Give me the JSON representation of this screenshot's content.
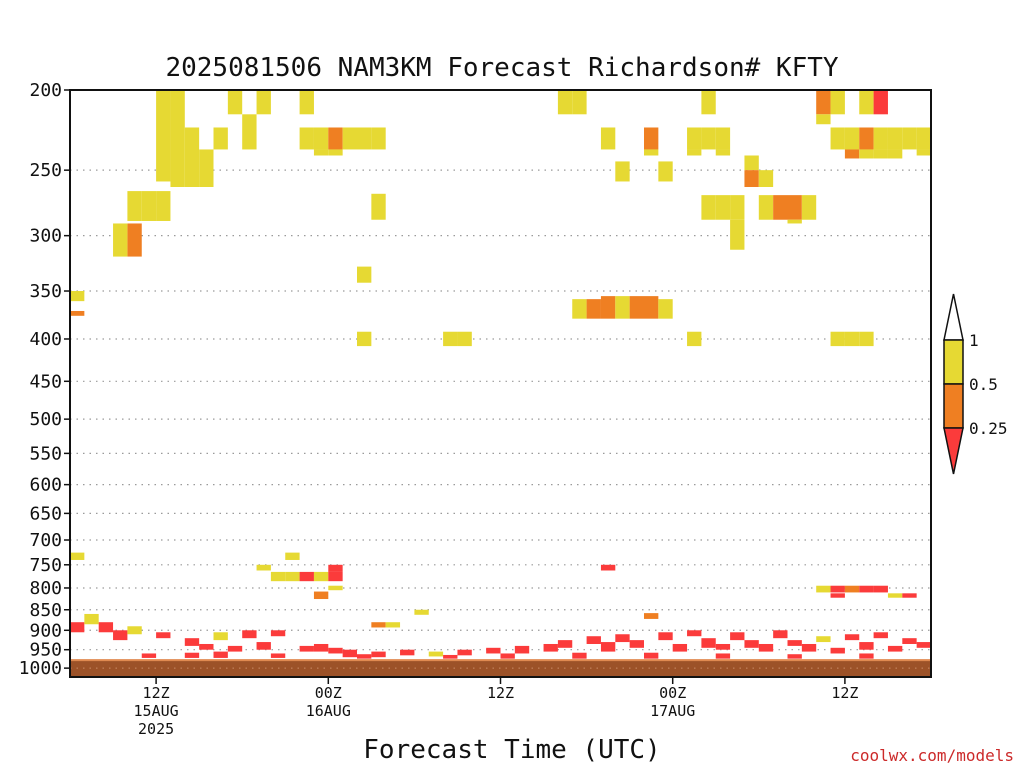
{
  "chart_data": {
    "type": "heatmap",
    "title": "2025081506 NAM3KM Forecast Richardson# KFTY",
    "xlabel": "Forecast Time (UTC)",
    "ylabel": "",
    "credit": "coolwx.com/models",
    "y_scale": "log",
    "y_reversed": true,
    "ylim": [
      1025,
      200
    ],
    "y_ticks": [
      200,
      250,
      300,
      350,
      400,
      450,
      500,
      550,
      600,
      650,
      700,
      750,
      800,
      850,
      900,
      950,
      1000
    ],
    "y_tick_labels": [
      "200",
      "250",
      "300",
      "350",
      "400",
      "450",
      "500",
      "550",
      "600",
      "650",
      "700",
      "750",
      "800",
      "850",
      "900",
      "950",
      "1000"
    ],
    "grid": true,
    "x_unit": "forecast hour",
    "xlim": [
      0,
      60
    ],
    "x_ticks": [
      {
        "x": 6,
        "line1": "12Z",
        "line2": "15AUG",
        "line3": "2025"
      },
      {
        "x": 18,
        "line1": "00Z",
        "line2": "16AUG",
        "line3": ""
      },
      {
        "x": 30,
        "line1": "12Z",
        "line2": "",
        "line3": ""
      },
      {
        "x": 42,
        "line1": "00Z",
        "line2": "17AUG",
        "line3": ""
      },
      {
        "x": 54,
        "line1": "12Z",
        "line2": "",
        "line3": ""
      }
    ],
    "colorbar": {
      "position": "right",
      "levels": [
        {
          "label": "1",
          "color": "#ffffff"
        },
        {
          "label": "0.5",
          "color": "#e6d933"
        },
        {
          "label": "0.25",
          "color": "#ef7f22"
        },
        {
          "label": "",
          "color": "#fb3b3b"
        }
      ],
      "boundary_labels": [
        "1",
        "0.5",
        "0.25"
      ]
    },
    "ground": {
      "color": "#9c5228",
      "line_color": "#e08a50",
      "pressure_top": 978
    },
    "categories": [
      {
        "name": "0.5-1",
        "color": "#e6d933"
      },
      {
        "name": "0.25-0.5",
        "color": "#ef7f22"
      },
      {
        "name": "<0.25",
        "color": "#fb3b3b"
      }
    ],
    "cells": [
      [
        6,
        7,
        200,
        258,
        1
      ],
      [
        7,
        8,
        200,
        262,
        1
      ],
      [
        8,
        9,
        222,
        262,
        1
      ],
      [
        9,
        10,
        236,
        262,
        1
      ],
      [
        5,
        6,
        265,
        288,
        1
      ],
      [
        6,
        7,
        265,
        288,
        1
      ],
      [
        4,
        5,
        265,
        288,
        1
      ],
      [
        4,
        5,
        290,
        318,
        2
      ],
      [
        3,
        4,
        290,
        318,
        1
      ],
      [
        10,
        11,
        222,
        236,
        1
      ],
      [
        11,
        12,
        200,
        214,
        1
      ],
      [
        12,
        13,
        214,
        236,
        1
      ],
      [
        13,
        14,
        200,
        214,
        1
      ],
      [
        16,
        17,
        200,
        214,
        1
      ],
      [
        16,
        17,
        222,
        236,
        1
      ],
      [
        17,
        18,
        222,
        236,
        1
      ],
      [
        18,
        19,
        222,
        236,
        2
      ],
      [
        18,
        19,
        236,
        240,
        1
      ],
      [
        17,
        18,
        236,
        240,
        1
      ],
      [
        19,
        20,
        222,
        236,
        1
      ],
      [
        20,
        21,
        222,
        236,
        1
      ],
      [
        21,
        22,
        222,
        236,
        1
      ],
      [
        21,
        22,
        267,
        287,
        1
      ],
      [
        20,
        21,
        327,
        342,
        1
      ],
      [
        20,
        21,
        392,
        408,
        1
      ],
      [
        26,
        27,
        392,
        408,
        1
      ],
      [
        27,
        28,
        392,
        408,
        1
      ],
      [
        0,
        1,
        350,
        360,
        1
      ],
      [
        0,
        1,
        370,
        375,
        2
      ],
      [
        34,
        35,
        200,
        214,
        1
      ],
      [
        35,
        36,
        200,
        214,
        1
      ],
      [
        37,
        38,
        222,
        236,
        1
      ],
      [
        38,
        39,
        244,
        258,
        1
      ],
      [
        40,
        41,
        222,
        236,
        2
      ],
      [
        40,
        41,
        236,
        240,
        1
      ],
      [
        41,
        42,
        244,
        258,
        1
      ],
      [
        43,
        44,
        222,
        236,
        1
      ],
      [
        43,
        44,
        236,
        240,
        1
      ],
      [
        44,
        45,
        222,
        236,
        1
      ],
      [
        45,
        46,
        222,
        236,
        1
      ],
      [
        45,
        46,
        236,
        240,
        1
      ],
      [
        44,
        45,
        200,
        214,
        1
      ],
      [
        44,
        45,
        268,
        287,
        1
      ],
      [
        45,
        46,
        268,
        287,
        1
      ],
      [
        46,
        47,
        268,
        287,
        1
      ],
      [
        46,
        47,
        287,
        312,
        1
      ],
      [
        47,
        48,
        240,
        250,
        1
      ],
      [
        47,
        48,
        250,
        262,
        2
      ],
      [
        48,
        49,
        250,
        262,
        1
      ],
      [
        48,
        49,
        268,
        287,
        1
      ],
      [
        49,
        50,
        268,
        287,
        2
      ],
      [
        50,
        51,
        268,
        287,
        2
      ],
      [
        50,
        51,
        287,
        290,
        1
      ],
      [
        51,
        52,
        268,
        287,
        1
      ],
      [
        52,
        53,
        200,
        214,
        2
      ],
      [
        52,
        53,
        214,
        220,
        1
      ],
      [
        53,
        54,
        200,
        214,
        1
      ],
      [
        53,
        54,
        222,
        236,
        1
      ],
      [
        54,
        55,
        222,
        236,
        1
      ],
      [
        54,
        55,
        236,
        242,
        2
      ],
      [
        55,
        56,
        200,
        214,
        1
      ],
      [
        55,
        56,
        222,
        236,
        2
      ],
      [
        55,
        56,
        236,
        242,
        1
      ],
      [
        56,
        57,
        200,
        214,
        3
      ],
      [
        56,
        57,
        222,
        236,
        1
      ],
      [
        57,
        58,
        222,
        236,
        1
      ],
      [
        57,
        58,
        236,
        242,
        1
      ],
      [
        56,
        57,
        236,
        242,
        1
      ],
      [
        58,
        59,
        222,
        236,
        1
      ],
      [
        59,
        60,
        222,
        236,
        1
      ],
      [
        59,
        60,
        236,
        240,
        1
      ],
      [
        35,
        36,
        358,
        378,
        1
      ],
      [
        36,
        37,
        358,
        378,
        2
      ],
      [
        37,
        38,
        355,
        378,
        2
      ],
      [
        38,
        39,
        355,
        378,
        1
      ],
      [
        39,
        40,
        355,
        378,
        2
      ],
      [
        40,
        41,
        355,
        378,
        2
      ],
      [
        41,
        42,
        358,
        378,
        1
      ],
      [
        43,
        44,
        392,
        408,
        1
      ],
      [
        53,
        54,
        392,
        408,
        1
      ],
      [
        54,
        55,
        392,
        408,
        1
      ],
      [
        55,
        56,
        392,
        408,
        1
      ],
      [
        0,
        1,
        725,
        740,
        1
      ],
      [
        13,
        14,
        750,
        762,
        1
      ],
      [
        14,
        15,
        765,
        785,
        1
      ],
      [
        15,
        16,
        765,
        785,
        1
      ],
      [
        16,
        17,
        765,
        785,
        3
      ],
      [
        17,
        18,
        765,
        785,
        1
      ],
      [
        18,
        19,
        750,
        765,
        3
      ],
      [
        18,
        19,
        765,
        785,
        3
      ],
      [
        15,
        16,
        725,
        740,
        1
      ],
      [
        17,
        18,
        808,
        825,
        2
      ],
      [
        18,
        19,
        795,
        805,
        1
      ],
      [
        37,
        38,
        750,
        762,
        3
      ],
      [
        52,
        53,
        795,
        810,
        1
      ],
      [
        53,
        54,
        795,
        810,
        3
      ],
      [
        54,
        55,
        795,
        810,
        2
      ],
      [
        55,
        56,
        795,
        810,
        3
      ],
      [
        56,
        57,
        795,
        810,
        3
      ],
      [
        53,
        54,
        812,
        822,
        3
      ],
      [
        57,
        58,
        812,
        822,
        1
      ],
      [
        58,
        59,
        812,
        822,
        3
      ],
      [
        40,
        41,
        858,
        872,
        2
      ],
      [
        21,
        22,
        880,
        893,
        2
      ],
      [
        22,
        23,
        880,
        893,
        1
      ],
      [
        24,
        25,
        850,
        862,
        1
      ],
      [
        0,
        1,
        880,
        905,
        3
      ],
      [
        1,
        2,
        860,
        885,
        1
      ],
      [
        2,
        3,
        880,
        905,
        3
      ],
      [
        3,
        4,
        900,
        925,
        3
      ],
      [
        4,
        5,
        890,
        910,
        1
      ],
      [
        6,
        7,
        905,
        920,
        3
      ],
      [
        8,
        9,
        920,
        940,
        3
      ],
      [
        9,
        10,
        935,
        950,
        3
      ],
      [
        10,
        11,
        905,
        925,
        1
      ],
      [
        11,
        12,
        940,
        955,
        3
      ],
      [
        12,
        13,
        900,
        920,
        3
      ],
      [
        13,
        14,
        930,
        950,
        3
      ],
      [
        14,
        15,
        900,
        915,
        3
      ],
      [
        16,
        17,
        940,
        955,
        3
      ],
      [
        17,
        18,
        935,
        955,
        3
      ],
      [
        18,
        19,
        945,
        960,
        3
      ],
      [
        19,
        20,
        950,
        970,
        3
      ],
      [
        21,
        22,
        955,
        970,
        3
      ],
      [
        23,
        24,
        950,
        965,
        3
      ],
      [
        25,
        26,
        955,
        968,
        1
      ],
      [
        27,
        28,
        950,
        965,
        3
      ],
      [
        29,
        30,
        945,
        960,
        3
      ],
      [
        31,
        32,
        940,
        960,
        3
      ],
      [
        33,
        34,
        935,
        955,
        3
      ],
      [
        34,
        35,
        925,
        945,
        3
      ],
      [
        36,
        37,
        915,
        935,
        3
      ],
      [
        37,
        38,
        930,
        955,
        3
      ],
      [
        38,
        39,
        910,
        930,
        3
      ],
      [
        39,
        40,
        925,
        945,
        3
      ],
      [
        41,
        42,
        905,
        925,
        3
      ],
      [
        42,
        43,
        935,
        955,
        3
      ],
      [
        43,
        44,
        900,
        915,
        3
      ],
      [
        44,
        45,
        920,
        945,
        3
      ],
      [
        45,
        46,
        935,
        950,
        3
      ],
      [
        46,
        47,
        905,
        925,
        3
      ],
      [
        47,
        48,
        925,
        945,
        3
      ],
      [
        48,
        49,
        935,
        955,
        3
      ],
      [
        49,
        50,
        900,
        920,
        3
      ],
      [
        50,
        51,
        925,
        940,
        3
      ],
      [
        51,
        52,
        935,
        955,
        3
      ],
      [
        52,
        53,
        915,
        930,
        1
      ],
      [
        53,
        54,
        945,
        960,
        3
      ],
      [
        54,
        55,
        910,
        925,
        3
      ],
      [
        55,
        56,
        930,
        950,
        3
      ],
      [
        56,
        57,
        905,
        920,
        3
      ],
      [
        57,
        58,
        940,
        955,
        3
      ],
      [
        58,
        59,
        920,
        935,
        3
      ],
      [
        59,
        60,
        930,
        945,
        3
      ],
      [
        5,
        6,
        960,
        972,
        3
      ],
      [
        8,
        9,
        958,
        972,
        3
      ],
      [
        10,
        11,
        955,
        972,
        3
      ],
      [
        14,
        15,
        960,
        972,
        3
      ],
      [
        20,
        21,
        962,
        974,
        3
      ],
      [
        26,
        27,
        964,
        974,
        3
      ],
      [
        30,
        31,
        960,
        974,
        3
      ],
      [
        35,
        36,
        958,
        974,
        3
      ],
      [
        40,
        41,
        958,
        974,
        3
      ],
      [
        45,
        46,
        960,
        974,
        3
      ],
      [
        50,
        51,
        962,
        974,
        3
      ],
      [
        55,
        56,
        960,
        974,
        3
      ]
    ]
  }
}
